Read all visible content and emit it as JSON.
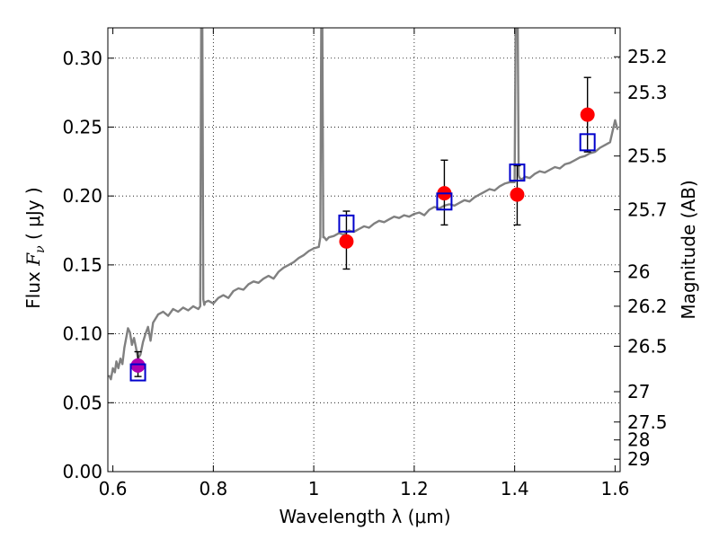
{
  "chart_data": {
    "type": "scatter",
    "xlabel": "Wavelength  λ (μm)",
    "ylabel": "Flux  F_ν  ( μJy )",
    "ylabel_parts": [
      "Flux ",
      "F",
      "ν",
      " (  μJy )"
    ],
    "y2label": "Magnitude (AB)",
    "xlim": [
      0.59,
      1.61
    ],
    "ylim": [
      0.0,
      0.322
    ],
    "grid": true,
    "x_ticks": [
      0.6,
      0.8,
      1.0,
      1.2,
      1.4,
      1.6
    ],
    "x_tick_labels": [
      "0.6",
      "0.8",
      "1",
      "1.2",
      "1.4",
      "1.6"
    ],
    "y_ticks": [
      0.0,
      0.05,
      0.1,
      0.15,
      0.2,
      0.25,
      0.3
    ],
    "y_tick_labels": [
      "0.00",
      "0.05",
      "0.10",
      "0.15",
      "0.20",
      "0.25",
      "0.30"
    ],
    "y2_ticks": [
      {
        "label": "25.2",
        "flux": 0.301
      },
      {
        "label": "25.3",
        "flux": 0.275
      },
      {
        "label": "25.5",
        "flux": 0.229
      },
      {
        "label": "25.7",
        "flux": 0.19
      },
      {
        "label": "26",
        "flux": 0.145
      },
      {
        "label": "26.2",
        "flux": 0.12
      },
      {
        "label": "26.5",
        "flux": 0.091
      },
      {
        "label": "27",
        "flux": 0.058
      },
      {
        "label": "27.5",
        "flux": 0.036
      },
      {
        "label": "28",
        "flux": 0.023
      },
      {
        "label": "29",
        "flux": 0.009
      }
    ],
    "series": [
      {
        "kind": "model_spectrum",
        "color": "#808080",
        "x": [
          0.592,
          0.596,
          0.6,
          0.604,
          0.607,
          0.611,
          0.615,
          0.619,
          0.623,
          0.627,
          0.63,
          0.634,
          0.638,
          0.642,
          0.646,
          0.65,
          0.655,
          0.66,
          0.665,
          0.67,
          0.675,
          0.68,
          0.69,
          0.7,
          0.71,
          0.72,
          0.73,
          0.74,
          0.75,
          0.76,
          0.77,
          0.774,
          0.776,
          0.778,
          0.78,
          0.782,
          0.784,
          0.79,
          0.8,
          0.81,
          0.82,
          0.83,
          0.84,
          0.85,
          0.86,
          0.87,
          0.88,
          0.89,
          0.9,
          0.91,
          0.92,
          0.93,
          0.94,
          0.95,
          0.96,
          0.97,
          0.98,
          0.99,
          1.0,
          1.01,
          1.013,
          1.015,
          1.017,
          1.019,
          1.021,
          1.025,
          1.03,
          1.04,
          1.05,
          1.06,
          1.07,
          1.08,
          1.09,
          1.1,
          1.11,
          1.12,
          1.13,
          1.14,
          1.15,
          1.16,
          1.17,
          1.18,
          1.19,
          1.2,
          1.21,
          1.22,
          1.23,
          1.24,
          1.25,
          1.26,
          1.27,
          1.28,
          1.29,
          1.3,
          1.31,
          1.32,
          1.33,
          1.34,
          1.35,
          1.36,
          1.37,
          1.38,
          1.39,
          1.4,
          1.402,
          1.404,
          1.406,
          1.408,
          1.41,
          1.415,
          1.42,
          1.43,
          1.44,
          1.45,
          1.46,
          1.47,
          1.48,
          1.49,
          1.5,
          1.51,
          1.52,
          1.53,
          1.54,
          1.55,
          1.56,
          1.57,
          1.58,
          1.59,
          1.6,
          1.605
        ],
        "y": [
          0.07,
          0.067,
          0.075,
          0.072,
          0.08,
          0.075,
          0.082,
          0.078,
          0.09,
          0.098,
          0.104,
          0.101,
          0.092,
          0.097,
          0.09,
          0.082,
          0.085,
          0.094,
          0.1,
          0.105,
          0.095,
          0.108,
          0.114,
          0.116,
          0.113,
          0.118,
          0.116,
          0.119,
          0.117,
          0.12,
          0.118,
          0.12,
          0.33,
          0.33,
          0.125,
          0.121,
          0.123,
          0.124,
          0.122,
          0.126,
          0.128,
          0.126,
          0.131,
          0.133,
          0.132,
          0.136,
          0.138,
          0.137,
          0.14,
          0.142,
          0.14,
          0.145,
          0.148,
          0.15,
          0.152,
          0.155,
          0.157,
          0.16,
          0.162,
          0.163,
          0.17,
          0.33,
          0.33,
          0.17,
          0.17,
          0.168,
          0.17,
          0.171,
          0.173,
          0.172,
          0.175,
          0.174,
          0.176,
          0.178,
          0.177,
          0.18,
          0.182,
          0.181,
          0.183,
          0.185,
          0.184,
          0.186,
          0.185,
          0.187,
          0.188,
          0.186,
          0.19,
          0.192,
          0.191,
          0.193,
          0.194,
          0.193,
          0.195,
          0.197,
          0.196,
          0.199,
          0.201,
          0.203,
          0.205,
          0.204,
          0.207,
          0.209,
          0.21,
          0.21,
          0.33,
          0.33,
          0.33,
          0.215,
          0.213,
          0.212,
          0.214,
          0.213,
          0.216,
          0.218,
          0.217,
          0.219,
          0.221,
          0.22,
          0.223,
          0.224,
          0.226,
          0.228,
          0.229,
          0.231,
          0.232,
          0.235,
          0.237,
          0.239,
          0.255,
          0.248
        ]
      },
      {
        "kind": "observed_points",
        "color": "#ff0000",
        "x": [
          1.065,
          1.26,
          1.405,
          1.545
        ],
        "y": [
          0.167,
          0.202,
          0.201,
          0.259
        ],
        "err_low": [
          0.02,
          0.023,
          0.022,
          0.027
        ],
        "err_high": [
          0.022,
          0.024,
          0.021,
          0.027
        ]
      },
      {
        "kind": "observed_point_optical",
        "color": "#b000b0",
        "x": [
          0.65
        ],
        "y": [
          0.077
        ],
        "err_low": [
          0.008
        ],
        "err_high": [
          0.01
        ]
      },
      {
        "kind": "model_photometry",
        "color": "#0000cc",
        "x": [
          0.65,
          1.065,
          1.26,
          1.405,
          1.545
        ],
        "y": [
          0.072,
          0.18,
          0.196,
          0.217,
          0.239
        ]
      }
    ]
  }
}
